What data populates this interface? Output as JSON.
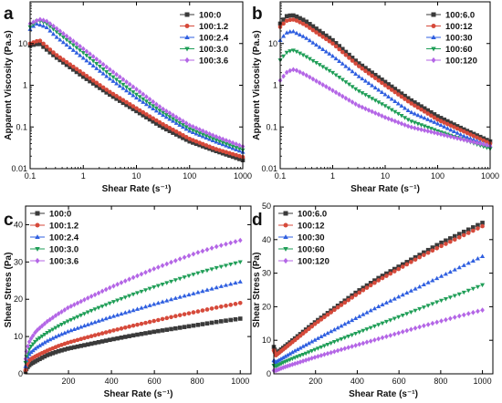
{
  "chart_data": [
    {
      "panel": "a",
      "type": "scatter",
      "xlabel": "Shear Rate (s⁻¹)",
      "ylabel": "Apparent Viscosity (Pa.s)",
      "xscale": "log",
      "yscale": "log",
      "xlim": [
        0.1,
        1000
      ],
      "ylim": [
        0.01,
        100
      ],
      "xticks": [
        0.1,
        1,
        10,
        100,
        1000
      ],
      "xtick_labels": [
        "0.1",
        "1",
        "10",
        "100",
        "1000"
      ],
      "yticks": [
        0.01,
        0.1,
        1,
        10
      ],
      "ytick_labels": [
        "0.01",
        "0.1",
        "1",
        "10"
      ],
      "legend_position": "top-right",
      "series": [
        {
          "name": "100:0",
          "color": "#3a3a3a",
          "marker": "square",
          "x": [
            0.1,
            0.15,
            0.3,
            1,
            3,
            10,
            30,
            100,
            300,
            1000
          ],
          "y": [
            9,
            10,
            4.8,
            1.6,
            0.62,
            0.24,
            0.1,
            0.045,
            0.027,
            0.016
          ]
        },
        {
          "name": "100:1.2",
          "color": "#d64a3b",
          "marker": "circle",
          "x": [
            0.1,
            0.15,
            0.3,
            1,
            3,
            10,
            30,
            100,
            300,
            1000
          ],
          "y": [
            10,
            12,
            5.5,
            1.9,
            0.72,
            0.28,
            0.12,
            0.052,
            0.03,
            0.019
          ]
        },
        {
          "name": "100:2.4",
          "color": "#2f5fe0",
          "marker": "triangle-up",
          "x": [
            0.1,
            0.13,
            0.2,
            0.3,
            1,
            3,
            10,
            30,
            100,
            300,
            1000
          ],
          "y": [
            22,
            30,
            25,
            15,
            4.5,
            1.5,
            0.5,
            0.2,
            0.08,
            0.045,
            0.025
          ]
        },
        {
          "name": "100:3.0",
          "color": "#1f9e57",
          "marker": "triangle-down",
          "x": [
            0.1,
            0.14,
            0.2,
            0.3,
            1,
            3,
            10,
            30,
            100,
            300,
            1000
          ],
          "y": [
            25,
            36,
            31,
            20,
            6,
            1.9,
            0.6,
            0.23,
            0.09,
            0.05,
            0.028
          ]
        },
        {
          "name": "100:3.6",
          "color": "#b466e6",
          "marker": "diamond",
          "x": [
            0.1,
            0.15,
            0.2,
            0.3,
            1,
            3,
            10,
            30,
            100,
            300,
            1000
          ],
          "y": [
            30,
            38,
            35,
            24,
            7.5,
            2.5,
            0.8,
            0.28,
            0.11,
            0.06,
            0.034
          ]
        }
      ]
    },
    {
      "panel": "b",
      "type": "scatter",
      "xlabel": "Shear Rate (s⁻¹)",
      "ylabel": "Apparent Viscosity (Pa.s)",
      "xscale": "log",
      "yscale": "log",
      "xlim": [
        0.1,
        1000
      ],
      "ylim": [
        0.01,
        100
      ],
      "xticks": [
        0.1,
        1,
        10,
        100,
        1000
      ],
      "xtick_labels": [
        "0.1",
        "1",
        "10",
        "100",
        "1000"
      ],
      "yticks": [
        0.01,
        0.1,
        1,
        10
      ],
      "ytick_labels": [
        "0.01",
        "0.1",
        "1",
        "10"
      ],
      "legend_position": "top-right",
      "series": [
        {
          "name": "100:6.0",
          "color": "#3a3a3a",
          "marker": "square",
          "x": [
            0.1,
            0.13,
            0.17,
            0.2,
            0.3,
            1,
            3,
            10,
            30,
            100,
            300,
            1000
          ],
          "y": [
            30,
            45,
            48,
            45,
            35,
            12,
            3.5,
            1.2,
            0.45,
            0.18,
            0.09,
            0.045
          ]
        },
        {
          "name": "100:12",
          "color": "#d64a3b",
          "marker": "circle",
          "x": [
            0.1,
            0.13,
            0.17,
            0.2,
            0.3,
            1,
            3,
            10,
            30,
            100,
            300,
            1000
          ],
          "y": [
            25,
            35,
            38,
            36,
            28,
            10,
            3,
            1,
            0.38,
            0.15,
            0.08,
            0.04
          ]
        },
        {
          "name": "100:30",
          "color": "#2f5fe0",
          "marker": "triangle-up",
          "x": [
            0.1,
            0.13,
            0.17,
            0.2,
            0.3,
            1,
            3,
            10,
            30,
            100,
            300,
            1000
          ],
          "y": [
            12,
            18,
            20,
            18,
            14,
            5,
            1.7,
            0.6,
            0.23,
            0.12,
            0.062,
            0.035
          ]
        },
        {
          "name": "100:60",
          "color": "#1f9e57",
          "marker": "triangle-down",
          "x": [
            0.1,
            0.13,
            0.17,
            0.2,
            0.3,
            1,
            3,
            10,
            30,
            100,
            300,
            1000
          ],
          "y": [
            4,
            6,
            7,
            6.5,
            5,
            2,
            0.75,
            0.32,
            0.14,
            0.08,
            0.05,
            0.03
          ]
        },
        {
          "name": "100:120",
          "color": "#b466e6",
          "marker": "diamond",
          "x": [
            0.1,
            0.13,
            0.17,
            0.2,
            0.3,
            1,
            3,
            10,
            30,
            100,
            300,
            1000
          ],
          "y": [
            1.3,
            2,
            2.4,
            2.3,
            1.8,
            0.75,
            0.33,
            0.17,
            0.1,
            0.07,
            0.05,
            0.035
          ]
        }
      ]
    },
    {
      "panel": "c",
      "type": "scatter",
      "xlabel": "Shear Rate (s⁻¹)",
      "ylabel": "Shear Stress (Pa)",
      "xscale": "linear",
      "yscale": "linear",
      "xlim": [
        0,
        1050
      ],
      "ylim": [
        0,
        45
      ],
      "xticks": [
        200,
        400,
        600,
        800,
        1000
      ],
      "xtick_labels": [
        "200",
        "400",
        "600",
        "800",
        "1000"
      ],
      "yticks": [
        0,
        10,
        20,
        30,
        40
      ],
      "ytick_labels": [
        "0",
        "10",
        "20",
        "30",
        "40"
      ],
      "legend_position": "top-left",
      "series": [
        {
          "name": "100:0",
          "color": "#3a3a3a",
          "marker": "square",
          "x": [
            0,
            5,
            20,
            50,
            100,
            150,
            200,
            300,
            400,
            500,
            600,
            700,
            800,
            900,
            1000
          ],
          "y": [
            0.5,
            1.5,
            2.5,
            3.5,
            5,
            6,
            6.8,
            8,
            9.2,
            10.3,
            11.3,
            12.2,
            13.1,
            14,
            14.8
          ]
        },
        {
          "name": "100:1.2",
          "color": "#d64a3b",
          "marker": "circle",
          "x": [
            0,
            5,
            20,
            50,
            100,
            150,
            200,
            300,
            400,
            500,
            600,
            700,
            800,
            900,
            1000
          ],
          "y": [
            1,
            2.5,
            3.8,
            4.8,
            6.2,
            7.4,
            8.4,
            10,
            11.5,
            12.9,
            14.2,
            15.5,
            16.7,
            17.9,
            19
          ]
        },
        {
          "name": "100:2.4",
          "color": "#2f5fe0",
          "marker": "triangle-up",
          "x": [
            0,
            5,
            20,
            50,
            100,
            150,
            200,
            300,
            400,
            500,
            600,
            700,
            800,
            900,
            1000
          ],
          "y": [
            2,
            4,
            5.5,
            7,
            8.8,
            10.2,
            11.4,
            13.4,
            15.3,
            17,
            18.7,
            20.3,
            21.8,
            23.3,
            24.7
          ]
        },
        {
          "name": "100:3.0",
          "color": "#1f9e57",
          "marker": "triangle-down",
          "x": [
            0,
            5,
            20,
            50,
            100,
            150,
            200,
            300,
            400,
            500,
            600,
            700,
            800,
            900,
            1000
          ],
          "y": [
            3,
            5,
            7,
            9,
            11,
            12.7,
            14.2,
            16.8,
            19.1,
            21.3,
            23.3,
            25.2,
            27,
            28.6,
            30
          ]
        },
        {
          "name": "100:3.6",
          "color": "#b466e6",
          "marker": "diamond",
          "x": [
            0,
            5,
            20,
            50,
            100,
            150,
            200,
            300,
            400,
            500,
            600,
            700,
            800,
            900,
            1000
          ],
          "y": [
            4,
            6.5,
            9,
            11.5,
            14,
            16,
            17.8,
            20.6,
            23.3,
            25.8,
            28.2,
            30.4,
            32.5,
            34.3,
            35.8
          ]
        }
      ]
    },
    {
      "panel": "d",
      "type": "scatter",
      "xlabel": "Shear Rate (s⁻¹)",
      "ylabel": "Shear Stress (Pa)",
      "xscale": "linear",
      "yscale": "linear",
      "xlim": [
        0,
        1050
      ],
      "ylim": [
        0,
        50
      ],
      "xticks": [
        200,
        400,
        600,
        800,
        1000
      ],
      "xtick_labels": [
        "200",
        "400",
        "600",
        "800",
        "1000"
      ],
      "yticks": [
        0,
        10,
        20,
        30,
        40,
        50
      ],
      "ytick_labels": [
        "0",
        "10",
        "20",
        "30",
        "40",
        "50"
      ],
      "legend_position": "top-left",
      "series": [
        {
          "name": "100:6.0",
          "color": "#3a3a3a",
          "marker": "square",
          "x": [
            0,
            10,
            50,
            100,
            150,
            200,
            300,
            400,
            500,
            600,
            700,
            800,
            900,
            1000
          ],
          "y": [
            8,
            6,
            8,
            10.5,
            13,
            15.5,
            20,
            24.5,
            28.5,
            32,
            35.5,
            39,
            42,
            45
          ]
        },
        {
          "name": "100:12",
          "color": "#d64a3b",
          "marker": "circle",
          "x": [
            0,
            10,
            50,
            100,
            150,
            200,
            300,
            400,
            500,
            600,
            700,
            800,
            900,
            1000
          ],
          "y": [
            7,
            5.5,
            7.5,
            10,
            12.5,
            15,
            19.5,
            23.8,
            27.8,
            31.3,
            34.8,
            38,
            41,
            44
          ]
        },
        {
          "name": "100:30",
          "color": "#2f5fe0",
          "marker": "triangle-up",
          "x": [
            0,
            10,
            50,
            100,
            150,
            200,
            300,
            400,
            500,
            600,
            700,
            800,
            900,
            1000
          ],
          "y": [
            4,
            3.5,
            5,
            6.8,
            8.5,
            10.2,
            13.5,
            16.8,
            20,
            23,
            26,
            29,
            32,
            35
          ]
        },
        {
          "name": "100:60",
          "color": "#1f9e57",
          "marker": "triangle-down",
          "x": [
            0,
            10,
            50,
            100,
            150,
            200,
            300,
            400,
            500,
            600,
            700,
            800,
            900,
            1000
          ],
          "y": [
            2.5,
            2.2,
            3.5,
            4.8,
            6,
            7.3,
            9.8,
            12.2,
            14.6,
            17,
            19.4,
            21.8,
            24,
            26.5
          ]
        },
        {
          "name": "100:120",
          "color": "#b466e6",
          "marker": "diamond",
          "x": [
            0,
            10,
            50,
            100,
            150,
            200,
            300,
            400,
            500,
            600,
            700,
            800,
            900,
            1000
          ],
          "y": [
            1,
            1,
            2,
            3,
            4,
            5,
            6.8,
            8.6,
            10.4,
            12.2,
            14,
            15.7,
            17.4,
            19
          ]
        }
      ]
    }
  ]
}
